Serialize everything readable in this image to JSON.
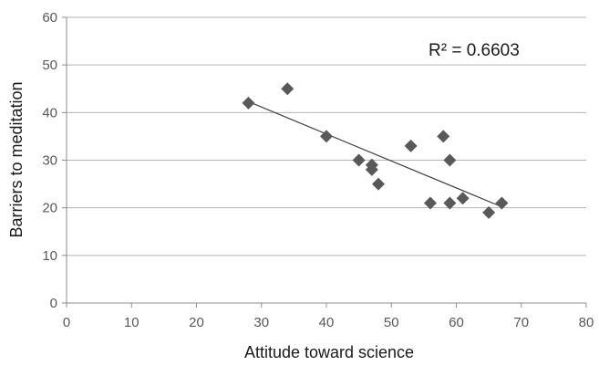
{
  "chart_data": {
    "type": "scatter",
    "title": "",
    "xlabel": "Attitude toward science",
    "ylabel": "Barriers to meditation",
    "xlim": [
      0,
      80
    ],
    "ylim": [
      0,
      60
    ],
    "x_ticks": [
      0,
      10,
      20,
      30,
      40,
      50,
      60,
      70,
      80
    ],
    "y_ticks": [
      0,
      10,
      20,
      30,
      40,
      50,
      60
    ],
    "grid": "horizontal",
    "legend": "none",
    "marker": "diamond",
    "marker_color": "#595959",
    "trendline": {
      "type": "linear",
      "x": [
        28,
        67
      ],
      "y": [
        42.3,
        20.2
      ],
      "color": "#404040"
    },
    "annotation": "R² = 0.6603",
    "points": [
      {
        "x": 28,
        "y": 42
      },
      {
        "x": 34,
        "y": 45
      },
      {
        "x": 40,
        "y": 35
      },
      {
        "x": 45,
        "y": 30
      },
      {
        "x": 47,
        "y": 29
      },
      {
        "x": 47,
        "y": 28
      },
      {
        "x": 48,
        "y": 25
      },
      {
        "x": 53,
        "y": 33
      },
      {
        "x": 56,
        "y": 21
      },
      {
        "x": 58,
        "y": 35
      },
      {
        "x": 59,
        "y": 30
      },
      {
        "x": 59,
        "y": 21
      },
      {
        "x": 61,
        "y": 22
      },
      {
        "x": 65,
        "y": 19
      },
      {
        "x": 67,
        "y": 21
      }
    ]
  }
}
